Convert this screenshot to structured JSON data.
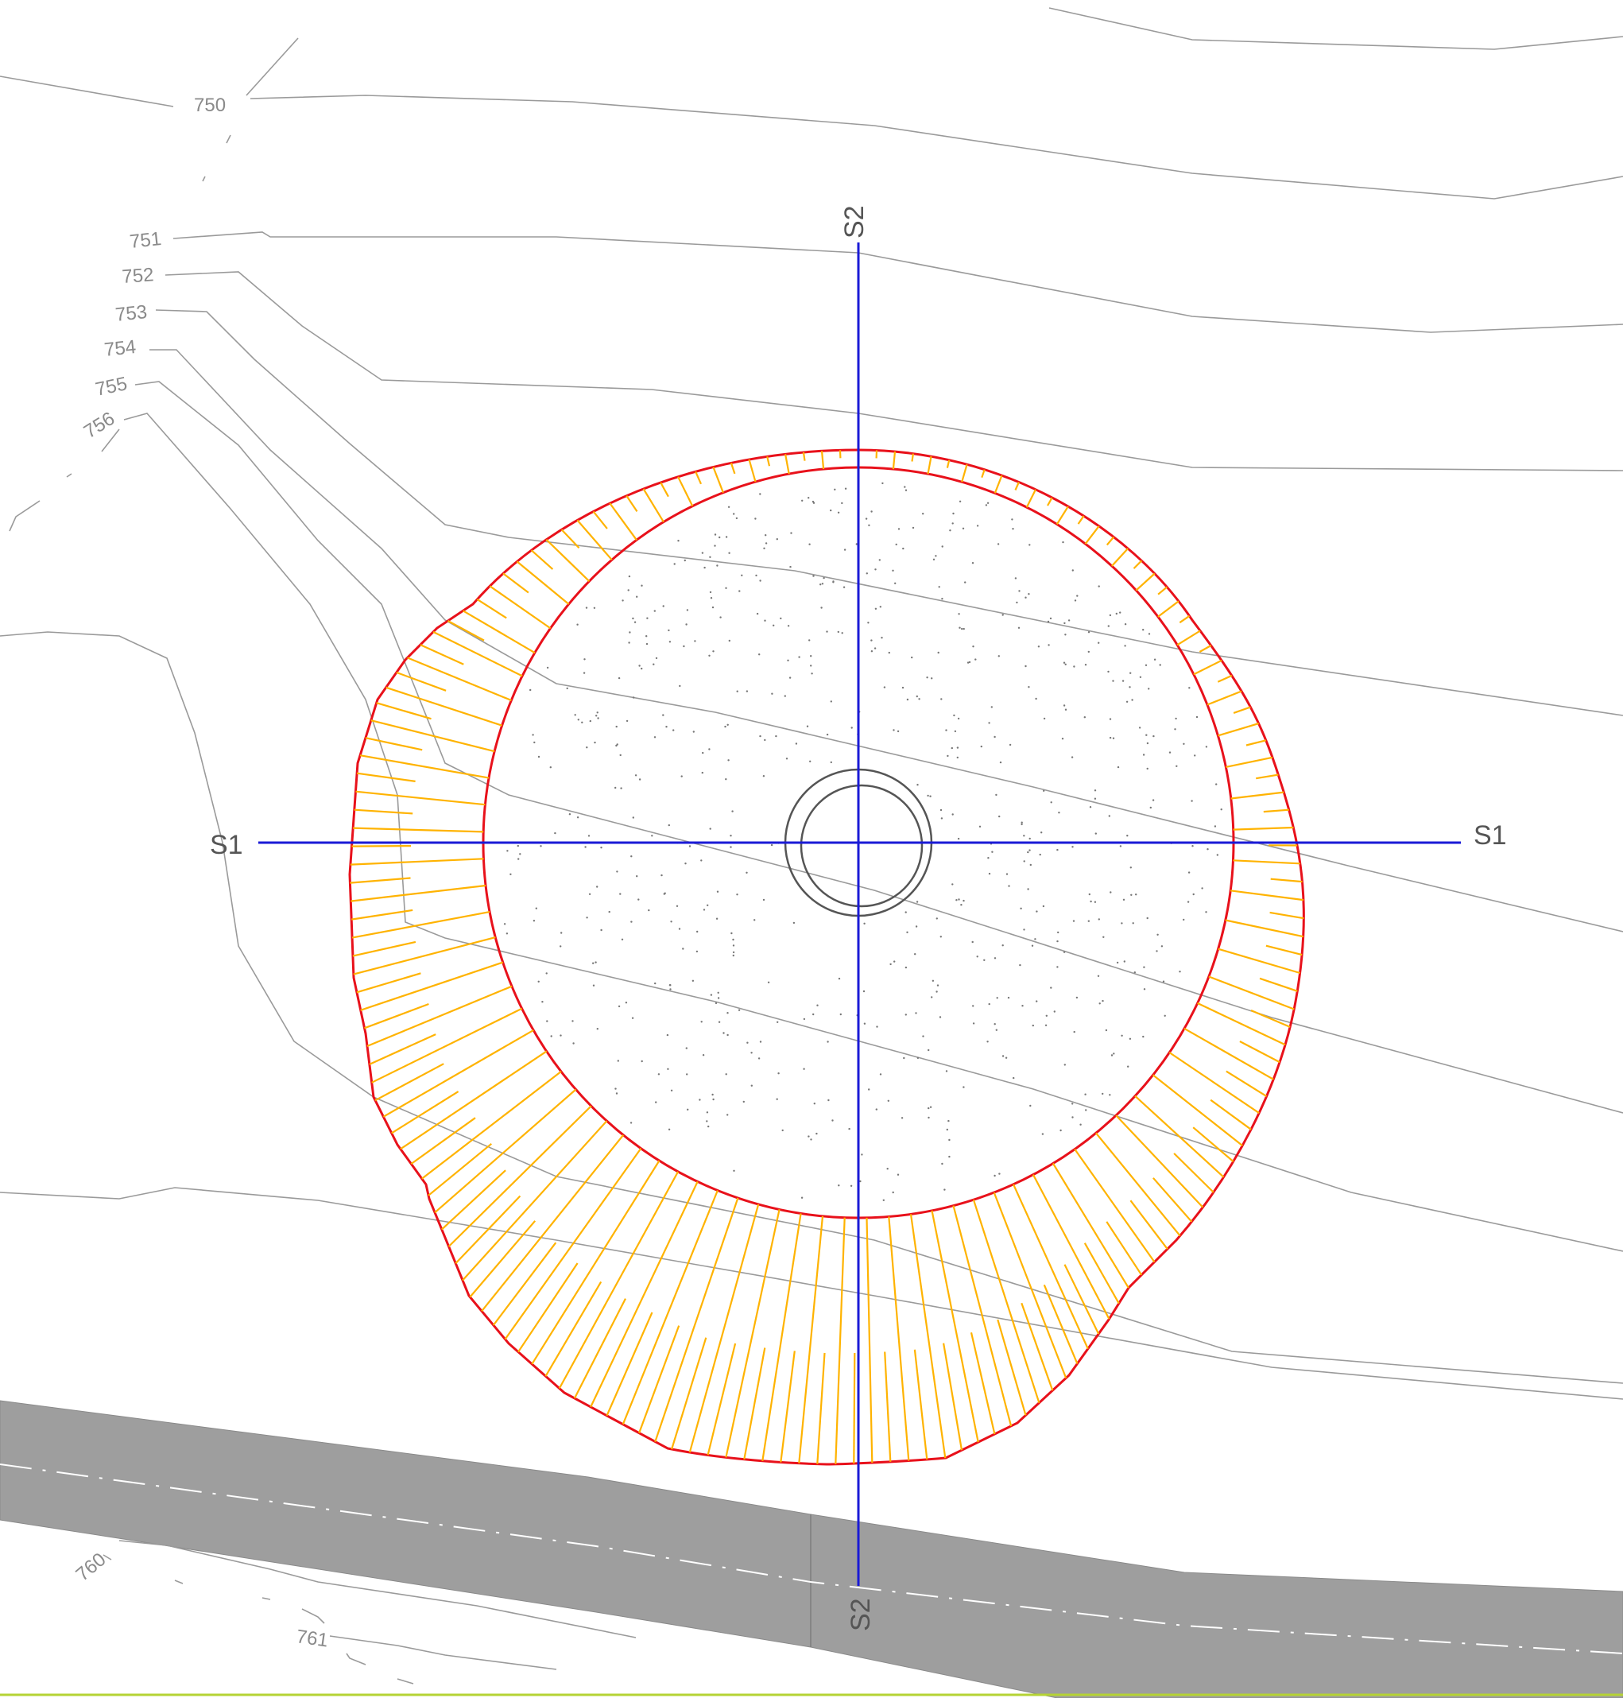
{
  "drawing": {
    "contour_labels": [
      "750",
      "751",
      "752",
      "753",
      "754",
      "755",
      "756",
      "760",
      "761"
    ],
    "section_labels": {
      "s1_left": "S1",
      "s1_right": "S1",
      "s2_top": "S2",
      "s2_bottom": "S2"
    }
  },
  "colors": {
    "section_line": "#1a1ad6",
    "boundary": "#e8111b",
    "slope_hatch": "#ffb300",
    "contour": "#9a9a9a",
    "road": "#9e9e9e",
    "bottom_edge": "#b5d334"
  }
}
